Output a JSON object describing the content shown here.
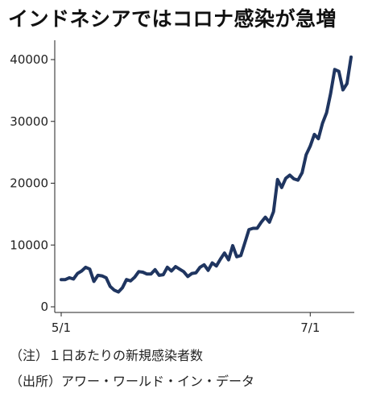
{
  "title": "インドネシアではコロナ感染が急増",
  "notes": {
    "note1": "（注）１日あたりの新規感染者数",
    "note2": "（出所）アワー・ワールド・イン・データ"
  },
  "colors": {
    "line": "#1f3560",
    "axis": "#222222"
  },
  "chart_data": {
    "type": "line",
    "title": "インドネシアではコロナ感染が急増",
    "xlabel": "",
    "ylabel": "",
    "ylim": [
      0,
      42000
    ],
    "yticks": [
      0,
      10000,
      20000,
      30000,
      40000
    ],
    "xtick_labels": [
      {
        "label": "5/1",
        "day": 0
      },
      {
        "label": "7/1",
        "day": 61
      }
    ],
    "grid": false,
    "series": [
      {
        "values": [
          4400,
          4400,
          4700,
          4500,
          5400,
          5800,
          6400,
          6100,
          4100,
          5100,
          5000,
          4700,
          3300,
          2700,
          2400,
          3100,
          4400,
          4200,
          4800,
          5700,
          5600,
          5300,
          5300,
          6000,
          5100,
          5200,
          6400,
          5800,
          6500,
          6100,
          5700,
          4900,
          5400,
          5500,
          6400,
          6800,
          5900,
          7100,
          6600,
          7700,
          8700,
          7600,
          9900,
          8100,
          8300,
          10400,
          12500,
          12700,
          12700,
          13700,
          14500,
          13700,
          15400,
          20600,
          19300,
          20800,
          21300,
          20700,
          20500,
          21700,
          24600,
          26000,
          27900,
          27200,
          29700,
          31400,
          34500,
          38400,
          38100,
          35100,
          36100,
          40400
        ]
      }
    ]
  }
}
